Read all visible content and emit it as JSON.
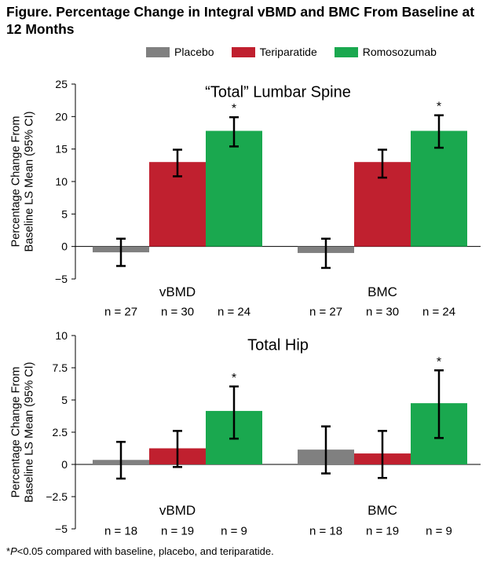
{
  "figure_title": "Figure. Percentage Change in Integral vBMD and BMC From Baseline at 12 Months",
  "legend": [
    {
      "label": "Placebo",
      "color": "#808080"
    },
    {
      "label": "Teriparatide",
      "color": "#c0202f"
    },
    {
      "label": "Romosozumab",
      "color": "#1aa84f"
    }
  ],
  "footnote": {
    "prefix": "*",
    "p": "P",
    "text": "<0.05 compared with baseline, placebo, and teriparatide."
  },
  "chart_data": [
    {
      "type": "bar",
      "title": "“Total” Lumbar Spine",
      "ylabel_line1": "Percentage Change From",
      "ylabel_line2": "Baseline LS Mean (95% CI)",
      "ylim": [
        -5,
        25
      ],
      "yticks": [
        -5,
        0,
        5,
        10,
        15,
        20,
        25
      ],
      "ytick_labels": [
        "−5",
        "0",
        "5",
        "10",
        "15",
        "20",
        "25"
      ],
      "categories": [
        "vBMD",
        "BMC"
      ],
      "series": [
        {
          "name": "Placebo",
          "values": [
            -0.9,
            -1.0
          ],
          "ci_low": [
            -3.0,
            -3.3
          ],
          "ci_high": [
            1.2,
            1.2
          ],
          "n": [
            "n = 27",
            "n = 27"
          ],
          "sig": [
            "",
            ""
          ]
        },
        {
          "name": "Teriparatide",
          "values": [
            13.0,
            13.0
          ],
          "ci_low": [
            10.8,
            10.6
          ],
          "ci_high": [
            14.9,
            14.9
          ],
          "n": [
            "n = 30",
            "n = 30"
          ],
          "sig": [
            "",
            ""
          ]
        },
        {
          "name": "Romosozumab",
          "values": [
            17.8,
            17.8
          ],
          "ci_low": [
            15.4,
            15.2
          ],
          "ci_high": [
            19.9,
            20.2
          ],
          "n": [
            "n = 24",
            "n = 24"
          ],
          "sig": [
            "*",
            "*"
          ]
        }
      ]
    },
    {
      "type": "bar",
      "title": "Total Hip",
      "ylabel_line1": "Percentage Change From",
      "ylabel_line2": "Baseline LS Mean (95% CI)",
      "ylim": [
        -5,
        10
      ],
      "yticks": [
        -5,
        -2.5,
        0,
        2.5,
        5,
        7.5,
        10
      ],
      "ytick_labels": [
        "−5",
        "−2.5",
        "0",
        "2.5",
        "5",
        "7.5",
        "10"
      ],
      "categories": [
        "vBMD",
        "BMC"
      ],
      "series": [
        {
          "name": "Placebo",
          "values": [
            0.35,
            1.15
          ],
          "ci_low": [
            -1.1,
            -0.7
          ],
          "ci_high": [
            1.75,
            2.95
          ],
          "n": [
            "n = 18",
            "n = 18"
          ],
          "sig": [
            "",
            ""
          ]
        },
        {
          "name": "Teriparatide",
          "values": [
            1.25,
            0.85
          ],
          "ci_low": [
            -0.2,
            -1.05
          ],
          "ci_high": [
            2.6,
            2.6
          ],
          "n": [
            "n = 19",
            "n = 19"
          ],
          "sig": [
            "",
            ""
          ]
        },
        {
          "name": "Romosozumab",
          "values": [
            4.15,
            4.75
          ],
          "ci_low": [
            2.0,
            2.05
          ],
          "ci_high": [
            6.05,
            7.3
          ],
          "n": [
            "n = 9",
            "n = 9"
          ],
          "sig": [
            "*",
            "*"
          ]
        }
      ]
    }
  ]
}
